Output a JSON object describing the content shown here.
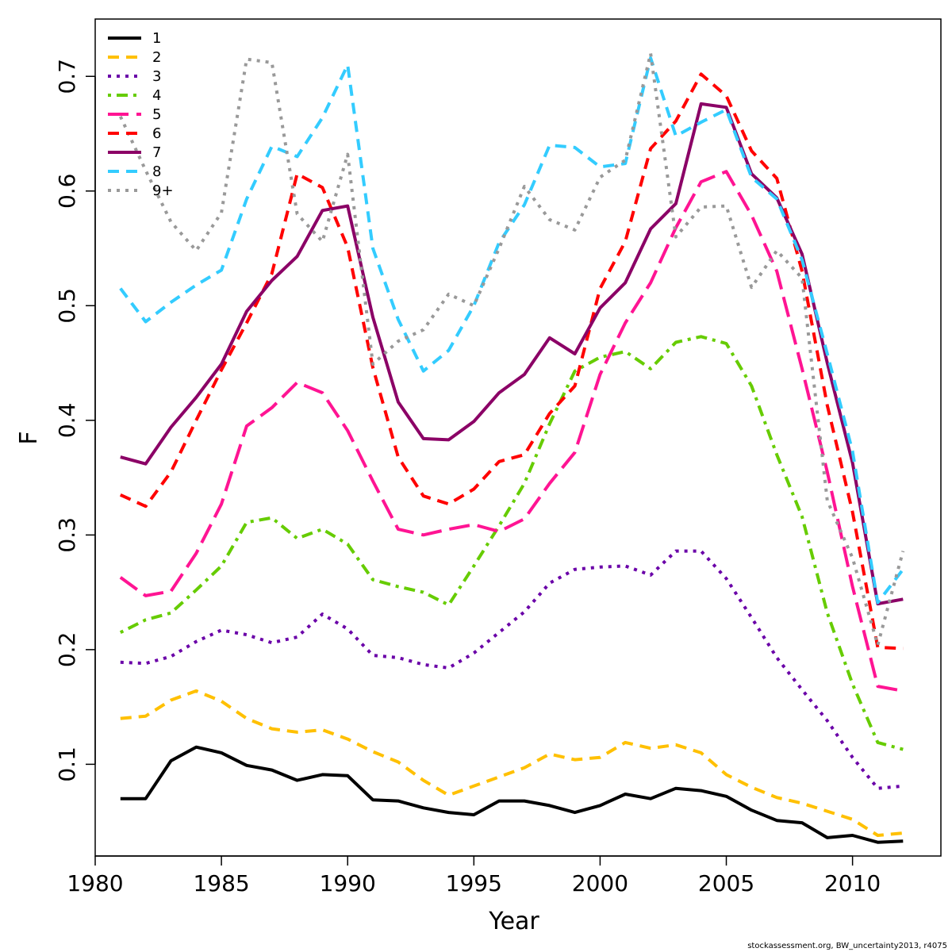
{
  "chart_data": {
    "type": "line",
    "xlabel": "Year",
    "ylabel": "F",
    "xlim": [
      1980,
      2013.5
    ],
    "ylim": [
      0.02,
      0.75
    ],
    "xticks": [
      "1980",
      "1985",
      "1990",
      "1995",
      "2000",
      "2005",
      "2010"
    ],
    "yticks": [
      "0.1",
      "0.2",
      "0.3",
      "0.4",
      "0.5",
      "0.6",
      "0.7"
    ],
    "legend_position": "top-left",
    "x": [
      1981,
      1982,
      1983,
      1984,
      1985,
      1986,
      1987,
      1988,
      1989,
      1990,
      1991,
      1992,
      1993,
      1994,
      1995,
      1996,
      1997,
      1998,
      1999,
      2000,
      2001,
      2002,
      2003,
      2004,
      2005,
      2006,
      2007,
      2008,
      2009,
      2010,
      2011,
      2012
    ],
    "series": [
      {
        "name": "1",
        "color": "#000000",
        "dash": "solid",
        "values": [
          0.07,
          0.07,
          0.103,
          0.115,
          0.11,
          0.099,
          0.095,
          0.086,
          0.091,
          0.09,
          0.069,
          0.068,
          0.062,
          0.058,
          0.056,
          0.068,
          0.068,
          0.064,
          0.058,
          0.064,
          0.074,
          0.07,
          0.079,
          0.077,
          0.072,
          0.06,
          0.051,
          0.049,
          0.036,
          0.038,
          0.032,
          0.033
        ]
      },
      {
        "name": "2",
        "color": "#FFC000",
        "dash": "dashed",
        "values": [
          0.14,
          0.142,
          0.156,
          0.164,
          0.155,
          0.14,
          0.131,
          0.128,
          0.13,
          0.122,
          0.111,
          0.102,
          0.086,
          0.073,
          0.081,
          0.089,
          0.097,
          0.109,
          0.104,
          0.106,
          0.119,
          0.114,
          0.117,
          0.11,
          0.091,
          0.08,
          0.071,
          0.066,
          0.059,
          0.052,
          0.038,
          0.04
        ]
      },
      {
        "name": "3",
        "color": "#6A00A8",
        "dash": "dotted",
        "values": [
          0.189,
          0.188,
          0.194,
          0.207,
          0.217,
          0.213,
          0.206,
          0.211,
          0.231,
          0.218,
          0.195,
          0.193,
          0.187,
          0.184,
          0.197,
          0.215,
          0.233,
          0.258,
          0.27,
          0.272,
          0.273,
          0.265,
          0.286,
          0.286,
          0.262,
          0.228,
          0.193,
          0.165,
          0.138,
          0.106,
          0.079,
          0.081
        ]
      },
      {
        "name": "4",
        "color": "#66CC00",
        "dash": "dotdash",
        "values": [
          0.215,
          0.226,
          0.232,
          0.252,
          0.273,
          0.311,
          0.315,
          0.297,
          0.305,
          0.292,
          0.261,
          0.255,
          0.25,
          0.239,
          0.273,
          0.308,
          0.345,
          0.397,
          0.443,
          0.455,
          0.46,
          0.445,
          0.468,
          0.473,
          0.467,
          0.43,
          0.37,
          0.316,
          0.232,
          0.17,
          0.119,
          0.113
        ]
      },
      {
        "name": "5",
        "color": "#FF1493",
        "dash": "longdash",
        "values": [
          0.263,
          0.247,
          0.251,
          0.284,
          0.327,
          0.395,
          0.411,
          0.433,
          0.424,
          0.391,
          0.347,
          0.305,
          0.3,
          0.305,
          0.309,
          0.303,
          0.314,
          0.345,
          0.372,
          0.44,
          0.485,
          0.52,
          0.568,
          0.608,
          0.617,
          0.579,
          0.53,
          0.445,
          0.355,
          0.255,
          0.168,
          0.164
        ]
      },
      {
        "name": "6",
        "color": "#FF0000",
        "dash": "dashed",
        "values": [
          0.335,
          0.325,
          0.355,
          0.4,
          0.444,
          0.485,
          0.528,
          0.615,
          0.603,
          0.551,
          0.446,
          0.368,
          0.334,
          0.327,
          0.34,
          0.364,
          0.37,
          0.406,
          0.43,
          0.515,
          0.556,
          0.637,
          0.661,
          0.702,
          0.683,
          0.635,
          0.611,
          0.53,
          0.413,
          0.32,
          0.202,
          0.201
        ]
      },
      {
        "name": "7",
        "color": "#8B0066",
        "dash": "solid",
        "values": [
          0.368,
          0.362,
          0.394,
          0.42,
          0.449,
          0.495,
          0.522,
          0.543,
          0.583,
          0.587,
          0.49,
          0.416,
          0.384,
          0.383,
          0.399,
          0.424,
          0.44,
          0.472,
          0.458,
          0.498,
          0.52,
          0.567,
          0.589,
          0.676,
          0.673,
          0.615,
          0.594,
          0.545,
          0.45,
          0.363,
          0.24,
          0.244
        ]
      },
      {
        "name": "8",
        "color": "#33CCFF",
        "dash": "dashed",
        "values": [
          0.515,
          0.486,
          0.503,
          0.518,
          0.531,
          0.593,
          0.639,
          0.63,
          0.664,
          0.71,
          0.55,
          0.488,
          0.443,
          0.461,
          0.5,
          0.555,
          0.588,
          0.64,
          0.638,
          0.621,
          0.624,
          0.716,
          0.648,
          0.66,
          0.671,
          0.612,
          0.593,
          0.54,
          0.458,
          0.373,
          0.241,
          0.27
        ]
      },
      {
        "name": "9+",
        "color": "#999999",
        "dash": "dotted",
        "values": [
          0.665,
          0.618,
          0.573,
          0.548,
          0.581,
          0.715,
          0.712,
          0.58,
          0.556,
          0.632,
          0.449,
          0.469,
          0.479,
          0.51,
          0.5,
          0.55,
          0.604,
          0.575,
          0.566,
          0.612,
          0.627,
          0.72,
          0.56,
          0.586,
          0.587,
          0.516,
          0.548,
          0.524,
          0.33,
          0.28,
          0.204,
          0.286
        ]
      }
    ]
  },
  "footer_text": "stockassessment.org, BW_uncertainty2013, r4075"
}
